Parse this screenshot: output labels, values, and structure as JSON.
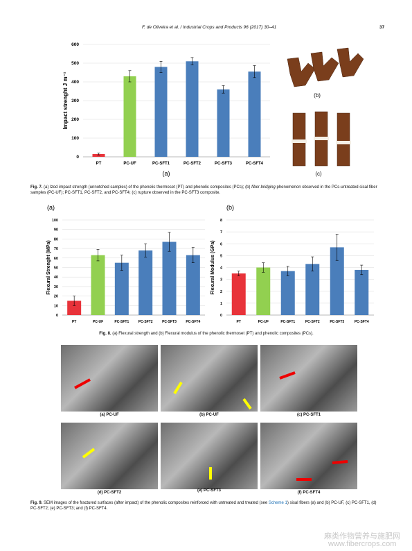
{
  "header": {
    "running_title": "F. de Oliveira et al. / Industrial Crops and Products 96 (2017) 30–41",
    "page_number": "37"
  },
  "chart_data": [
    {
      "type": "bar",
      "panel_label": "(a)",
      "y_label": "Impact strenght J m⁻¹",
      "categories": [
        "PT",
        "PC-UF",
        "PC-SFT1",
        "PC-SFT2",
        "PC-SFT3",
        "PC-SFT4"
      ],
      "values": [
        15,
        430,
        480,
        510,
        360,
        455
      ],
      "errors": [
        5,
        30,
        30,
        20,
        20,
        32
      ],
      "colors": [
        "#e8333a",
        "#92d050",
        "#4a7ebb",
        "#4a7ebb",
        "#4a7ebb",
        "#4a7ebb"
      ],
      "ylim": [
        0,
        600
      ],
      "yticks": [
        0,
        100,
        200,
        300,
        400,
        500,
        600
      ],
      "grid": true
    },
    {
      "type": "bar",
      "panel_label": "(a)",
      "y_label": "Flexural Strenght (MPa)",
      "categories": [
        "PT",
        "PC-UF",
        "PC-SFT1",
        "PC-SFT2",
        "PC-SFT3",
        "PC-SFT4"
      ],
      "values": [
        15,
        63,
        55,
        68,
        77,
        63
      ],
      "errors": [
        5,
        6,
        8,
        7,
        10,
        8
      ],
      "colors": [
        "#e8333a",
        "#92d050",
        "#4a7ebb",
        "#4a7ebb",
        "#4a7ebb",
        "#4a7ebb"
      ],
      "ylim": [
        0,
        100
      ],
      "yticks": [
        0,
        10,
        20,
        30,
        40,
        50,
        60,
        70,
        80,
        90,
        100
      ],
      "grid": true
    },
    {
      "type": "bar",
      "panel_label": "(b)",
      "y_label": "Flexural Modulus (GPa)",
      "categories": [
        "PT",
        "PC-UF",
        "PC-SFT1",
        "PC-SFT2",
        "PC-SFT3",
        "PC-SFT4"
      ],
      "values": [
        3.5,
        4.0,
        3.7,
        4.3,
        5.7,
        3.8
      ],
      "errors": [
        0.2,
        0.4,
        0.4,
        0.6,
        1.1,
        0.4
      ],
      "colors": [
        "#e8333a",
        "#92d050",
        "#4a7ebb",
        "#4a7ebb",
        "#4a7ebb",
        "#4a7ebb"
      ],
      "ylim": [
        0,
        8
      ],
      "yticks": [
        0,
        1,
        2,
        3,
        4,
        5,
        6,
        7,
        8
      ],
      "grid": true
    }
  ],
  "figure7": {
    "photo_labels": [
      "(b)",
      "(c)"
    ],
    "caption_label": "Fig. 7.",
    "caption_parts": [
      " (a) Izod impact strength (unnotched samples) of the phenolic thermoset (PT) and phenolic composites (PCs); (b) ",
      "fiber bridging",
      " phenomenon observed in the PCs-untreated sisal fiber samples (PC-UF); PC-SFT1, PC-SFT2, and PC-SFT4; (c) rupture observed in the PC-SFT3 composite."
    ]
  },
  "figure8": {
    "caption_label": "Fig. 8.",
    "caption": " (a) Flexural strength and (b) Flexural modulus of the phenolic thermoset (PT) and phenolic composites (PCs)."
  },
  "figure9": {
    "panel_labels": [
      "(a) PC-UF",
      "(b) PC-UF",
      "(c) PC-SFT1",
      "(d) PC-SFT2",
      "(e) PC-SFT3",
      "(f) PC-SFT4"
    ],
    "caption_label": "Fig. 9.",
    "caption_parts": [
      " SEM images of the fractured surfaces (after impact) of the phenolic composites reinforced with untreated and treated (see ",
      "Scheme 1",
      ") sisal fibers (a) and (b) PC-UF, (c) PC-SFT1, (d) PC-SFT2; (e) PC-SFT3; and (f) PC-SFT4."
    ]
  },
  "watermark": {
    "line1": "麻类作物营养与施肥网",
    "line2": "www.fibercrops.com"
  }
}
